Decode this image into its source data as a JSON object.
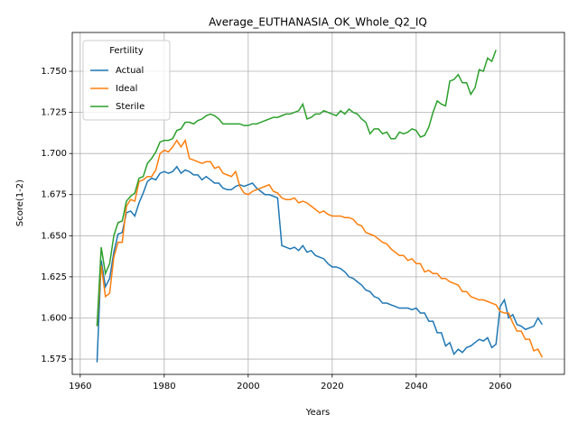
{
  "chart_data": {
    "type": "line",
    "title": "Average_EUTHANASIA_OK_Whole_Q2_IQ",
    "x_label": "Years",
    "y_label": "Score(1-2)",
    "legend_title": "Fertility",
    "legend": "upper left",
    "grid": true,
    "xlim": [
      1958.1,
      2075.3
    ],
    "xticks": [
      1960,
      1980,
      2000,
      2020,
      2040,
      2060
    ],
    "ylim": [
      1.5657,
      1.7736
    ],
    "yticks": [
      1.575,
      {
        "value": 1.6,
        "label": "1.600"
      },
      1.625,
      {
        "value": 1.65,
        "label": "1.650"
      },
      1.675,
      {
        "value": 1.7,
        "label": "1.700"
      },
      1.725,
      {
        "value": 1.75,
        "label": "1.750"
      }
    ],
    "x": [
      1964,
      1965,
      1966,
      1967,
      1968,
      1969,
      1970,
      1971,
      1972,
      1973,
      1974,
      1975,
      1976,
      1977,
      1978,
      1979,
      1980,
      1981,
      1982,
      1983,
      1984,
      1985,
      1986,
      1987,
      1988,
      1989,
      1990,
      1991,
      1992,
      1993,
      1994,
      1995,
      1996,
      1997,
      1998,
      1999,
      2000,
      2001,
      2002,
      2003,
      2004,
      2005,
      2006,
      2007,
      2008,
      2009,
      2010,
      2011,
      2012,
      2013,
      2014,
      2015,
      2016,
      2017,
      2018,
      2019,
      2020,
      2021,
      2022,
      2023,
      2024,
      2025,
      2026,
      2027,
      2028,
      2029,
      2030,
      2031,
      2032,
      2033,
      2034,
      2035,
      2036,
      2037,
      2038,
      2039,
      2040,
      2041,
      2042,
      2043,
      2044,
      2045,
      2046,
      2047,
      2048,
      2049,
      2050,
      2051,
      2052,
      2053,
      2054,
      2055,
      2056,
      2057,
      2058,
      2059,
      2060,
      2061,
      2062,
      2063,
      2064,
      2065,
      2066,
      2067,
      2068,
      2069,
      2070
    ],
    "series": [
      {
        "name": "Actual",
        "color": "#1f77b4",
        "values": [
          1.573,
          1.635,
          1.619,
          1.624,
          1.64,
          1.651,
          1.652,
          1.664,
          1.665,
          1.662,
          1.67,
          1.676,
          1.683,
          1.685,
          1.684,
          1.688,
          1.689,
          1.688,
          1.689,
          1.692,
          1.688,
          1.69,
          1.689,
          1.687,
          1.687,
          1.684,
          1.686,
          1.684,
          1.682,
          1.682,
          1.679,
          1.678,
          1.678,
          1.68,
          1.681,
          1.68,
          1.681,
          1.682,
          1.679,
          1.677,
          1.675,
          1.675,
          1.674,
          1.673,
          1.644,
          1.643,
          1.642,
          1.643,
          1.641,
          1.644,
          1.64,
          1.641,
          1.638,
          1.637,
          1.636,
          1.633,
          1.631,
          1.631,
          1.63,
          1.628,
          1.625,
          1.624,
          1.622,
          1.62,
          1.617,
          1.616,
          1.613,
          1.612,
          1.609,
          1.609,
          1.608,
          1.607,
          1.606,
          1.606,
          1.606,
          1.605,
          1.606,
          1.603,
          1.603,
          1.598,
          1.598,
          1.591,
          1.591,
          1.583,
          1.585,
          1.578,
          1.581,
          1.579,
          1.582,
          1.583,
          1.585,
          1.587,
          1.586,
          1.588,
          1.582,
          1.584,
          1.607,
          1.611,
          1.6,
          1.602,
          1.596,
          1.595,
          1.593,
          1.594,
          1.595,
          1.6,
          1.596
        ]
      },
      {
        "name": "Ideal",
        "color": "#ff7f0e",
        "values": [
          1.595,
          1.632,
          1.613,
          1.615,
          1.637,
          1.646,
          1.646,
          1.668,
          1.672,
          1.671,
          1.683,
          1.684,
          1.686,
          1.686,
          1.69,
          1.7,
          1.702,
          1.701,
          1.704,
          1.708,
          1.704,
          1.708,
          1.697,
          1.696,
          1.695,
          1.694,
          1.695,
          1.695,
          1.691,
          1.692,
          1.688,
          1.687,
          1.686,
          1.689,
          1.68,
          1.676,
          1.675,
          1.677,
          1.678,
          1.679,
          1.68,
          1.681,
          1.677,
          1.676,
          1.673,
          1.672,
          1.672,
          1.673,
          1.67,
          1.671,
          1.67,
          1.668,
          1.666,
          1.664,
          1.665,
          1.663,
          1.662,
          1.662,
          1.662,
          1.661,
          1.661,
          1.66,
          1.657,
          1.656,
          1.652,
          1.651,
          1.65,
          1.648,
          1.646,
          1.645,
          1.642,
          1.64,
          1.638,
          1.638,
          1.635,
          1.636,
          1.633,
          1.633,
          1.628,
          1.629,
          1.627,
          1.627,
          1.624,
          1.624,
          1.622,
          1.621,
          1.62,
          1.616,
          1.616,
          1.613,
          1.612,
          1.611,
          1.611,
          1.61,
          1.609,
          1.608,
          1.604,
          1.603,
          1.603,
          1.597,
          1.592,
          1.592,
          1.587,
          1.587,
          1.58,
          1.581,
          1.576
        ]
      },
      {
        "name": "Sterile",
        "color": "#2ca02c",
        "values": [
          1.595,
          1.643,
          1.627,
          1.633,
          1.65,
          1.658,
          1.659,
          1.671,
          1.674,
          1.676,
          1.685,
          1.686,
          1.694,
          1.697,
          1.701,
          1.707,
          1.708,
          1.708,
          1.709,
          1.714,
          1.715,
          1.719,
          1.719,
          1.718,
          1.72,
          1.721,
          1.723,
          1.724,
          1.723,
          1.721,
          1.718,
          1.718,
          1.718,
          1.718,
          1.718,
          1.717,
          1.717,
          1.718,
          1.718,
          1.719,
          1.72,
          1.721,
          1.722,
          1.722,
          1.723,
          1.724,
          1.724,
          1.725,
          1.726,
          1.73,
          1.721,
          1.722,
          1.724,
          1.724,
          1.726,
          1.725,
          1.724,
          1.723,
          1.726,
          1.724,
          1.727,
          1.725,
          1.724,
          1.721,
          1.719,
          1.712,
          1.715,
          1.715,
          1.712,
          1.713,
          1.709,
          1.709,
          1.713,
          1.712,
          1.713,
          1.715,
          1.714,
          1.71,
          1.711,
          1.716,
          1.725,
          1.732,
          1.73,
          1.729,
          1.744,
          1.745,
          1.748,
          1.743,
          1.743,
          1.736,
          1.74,
          1.751,
          1.75,
          1.758,
          1.756,
          1.763,
          null,
          null,
          null,
          null,
          null,
          null,
          null,
          null,
          null,
          null,
          null
        ]
      }
    ]
  }
}
